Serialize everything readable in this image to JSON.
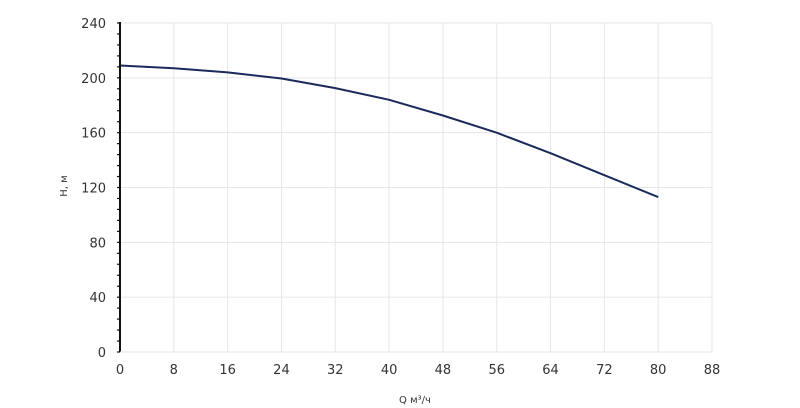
{
  "chart_data": {
    "type": "line",
    "xlabel": "Q м³/ч",
    "ylabel": "H, м",
    "xlim": [
      0,
      88
    ],
    "ylim": [
      0,
      240
    ],
    "xticks": [
      0,
      8,
      16,
      24,
      32,
      40,
      48,
      56,
      64,
      72,
      80,
      88
    ],
    "yticks": [
      0,
      40,
      80,
      120,
      160,
      200,
      240
    ],
    "grid": true,
    "series": [
      {
        "color": "#1b2a5c",
        "points": [
          [
            0,
            209
          ],
          [
            8,
            207
          ],
          [
            16,
            204
          ],
          [
            24,
            199.5
          ],
          [
            32,
            192.5
          ],
          [
            40,
            184
          ],
          [
            48,
            172.5
          ],
          [
            56,
            160
          ],
          [
            64,
            145
          ],
          [
            72,
            129
          ],
          [
            80,
            113
          ]
        ]
      }
    ]
  },
  "colors": {
    "grid": "#e6e6e6",
    "axis": "#111111",
    "line": "#1b2a5c"
  }
}
